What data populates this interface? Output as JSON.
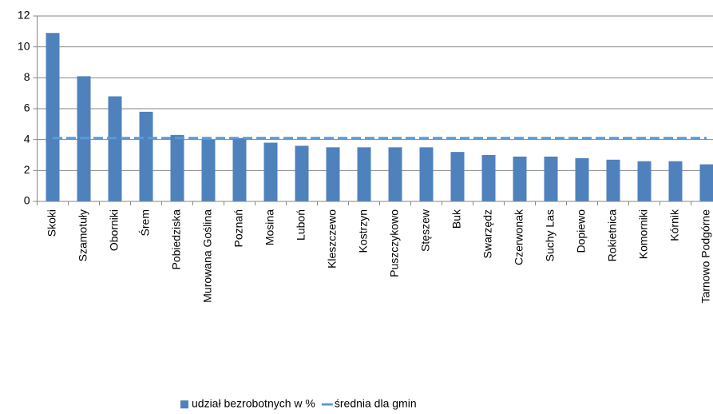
{
  "chart_data": {
    "type": "bar",
    "categories": [
      "Skoki",
      "Szamotuły",
      "Oborniki",
      "Śrem",
      "Pobiedziska",
      "Murowana Goślina",
      "Poznań",
      "Mosina",
      "Luboń",
      "Kleszczewo",
      "Kostrzyn",
      "Puszczykowo",
      "Stęszew",
      "Buk",
      "Swarzędz",
      "Czerwonak",
      "Suchy Las",
      "Dopiewo",
      "Rokietnica",
      "Komorniki",
      "Kórnik",
      "Tarnowo Podgórne"
    ],
    "series": [
      {
        "name": "udział bezrobotnych w %",
        "type": "bar",
        "color": "#4f81bd",
        "values": [
          10.9,
          8.1,
          6.8,
          5.8,
          4.3,
          4.0,
          4.1,
          3.8,
          3.6,
          3.5,
          3.5,
          3.5,
          3.5,
          3.2,
          3.0,
          2.9,
          2.9,
          2.8,
          2.7,
          2.6,
          2.6,
          2.4
        ]
      },
      {
        "name": "średnia dla gmin",
        "type": "line",
        "color": "#5b9bd5",
        "values": [
          4.1,
          4.1,
          4.1,
          4.1,
          4.1,
          4.1,
          4.1,
          4.1,
          4.1,
          4.1,
          4.1,
          4.1,
          4.1,
          4.1,
          4.1,
          4.1,
          4.1,
          4.1,
          4.1,
          4.1,
          4.1,
          4.1
        ]
      }
    ],
    "ylim": [
      0,
      12
    ],
    "yticks": [
      0,
      2,
      4,
      6,
      8,
      10,
      12
    ],
    "grid": true,
    "legend": "bottom"
  }
}
